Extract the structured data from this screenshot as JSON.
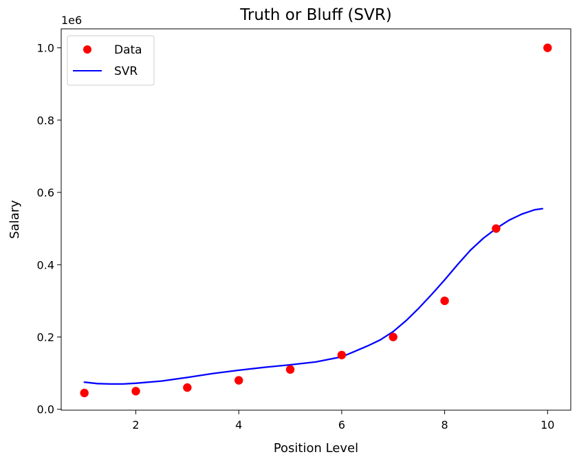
{
  "chart_data": {
    "type": "scatter+line",
    "title": "Truth or Bluff (SVR)",
    "xlabel": "Position Level",
    "ylabel": "Salary",
    "y_offset_label": "1e6",
    "xlim": [
      0.55,
      10.45
    ],
    "ylim": [
      -0.0025,
      1.0525
    ],
    "x_ticks": [
      2,
      4,
      6,
      8,
      10
    ],
    "x_tick_labels": [
      "2",
      "4",
      "6",
      "8",
      "10"
    ],
    "y_ticks": [
      0.0,
      0.2,
      0.4,
      0.6,
      0.8,
      1.0
    ],
    "y_tick_labels": [
      "0.0",
      "0.2",
      "0.4",
      "0.6",
      "0.8",
      "1.0"
    ],
    "grid": false,
    "legend_position": "upper-left",
    "series": [
      {
        "name": "Data",
        "kind": "scatter",
        "color": "#ff0000",
        "x": [
          1,
          2,
          3,
          4,
          5,
          6,
          7,
          8,
          9,
          10
        ],
        "y": [
          0.045,
          0.05,
          0.06,
          0.08,
          0.11,
          0.15,
          0.2,
          0.3,
          0.5,
          1.0
        ]
      },
      {
        "name": "SVR",
        "kind": "line",
        "color": "#0000ff",
        "x": [
          1.0,
          1.25,
          1.5,
          1.75,
          2.0,
          2.5,
          3.0,
          3.5,
          4.0,
          4.5,
          5.0,
          5.5,
          6.0,
          6.25,
          6.5,
          6.75,
          7.0,
          7.25,
          7.5,
          7.75,
          8.0,
          8.25,
          8.5,
          8.75,
          9.0,
          9.25,
          9.5,
          9.75,
          9.9
        ],
        "y": [
          0.075,
          0.071,
          0.07,
          0.07,
          0.072,
          0.078,
          0.088,
          0.099,
          0.108,
          0.116,
          0.123,
          0.131,
          0.145,
          0.16,
          0.175,
          0.192,
          0.215,
          0.245,
          0.28,
          0.318,
          0.358,
          0.4,
          0.44,
          0.473,
          0.5,
          0.523,
          0.54,
          0.552,
          0.555
        ]
      }
    ]
  }
}
